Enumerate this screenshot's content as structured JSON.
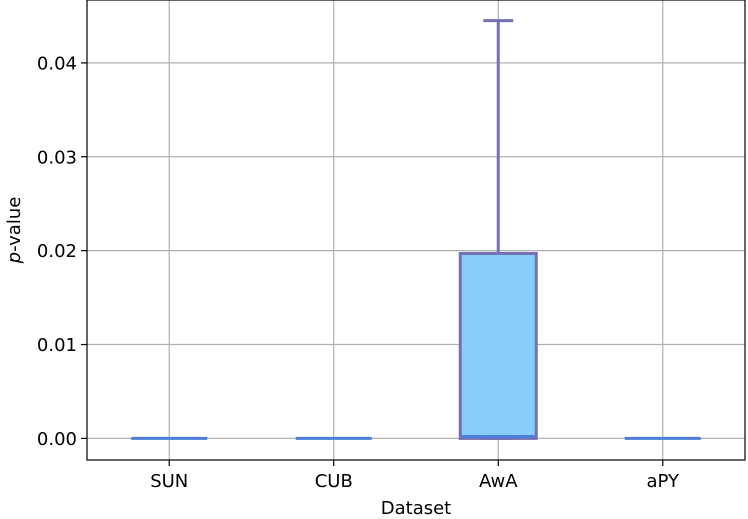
{
  "chart_data": {
    "type": "box",
    "xlabel": "Dataset",
    "ylabel_italic": "p",
    "ylabel_rest": "-value",
    "categories": [
      "SUN",
      "CUB",
      "AwA",
      "aPY"
    ],
    "boxes": [
      {
        "category": "SUN",
        "whisker_low": 0.0,
        "q1": 0.0,
        "median": 0.0,
        "q3": 0.0,
        "whisker_high": 0.0
      },
      {
        "category": "CUB",
        "whisker_low": 0.0,
        "q1": 0.0,
        "median": 0.0,
        "q3": 0.0,
        "whisker_high": 0.0
      },
      {
        "category": "AwA",
        "whisker_low": 0.0,
        "q1": 0.0,
        "median": 0.0002,
        "q3": 0.0197,
        "whisker_high": 0.0445
      },
      {
        "category": "aPY",
        "whisker_low": 0.0,
        "q1": 0.0,
        "median": 0.0,
        "q3": 0.0,
        "whisker_high": 0.0
      }
    ],
    "ylim": [
      -0.0023,
      0.0467
    ],
    "yticks": [
      0.0,
      0.01,
      0.02,
      0.03,
      0.04
    ],
    "ytick_labels": [
      "0.00",
      "0.01",
      "0.02",
      "0.03",
      "0.04"
    ],
    "grid": true,
    "colors": {
      "box_fill": "#87CEFA",
      "box_edge": "#7570B3",
      "median": "#4C7FD9",
      "grid": "#b0b0b0"
    }
  }
}
